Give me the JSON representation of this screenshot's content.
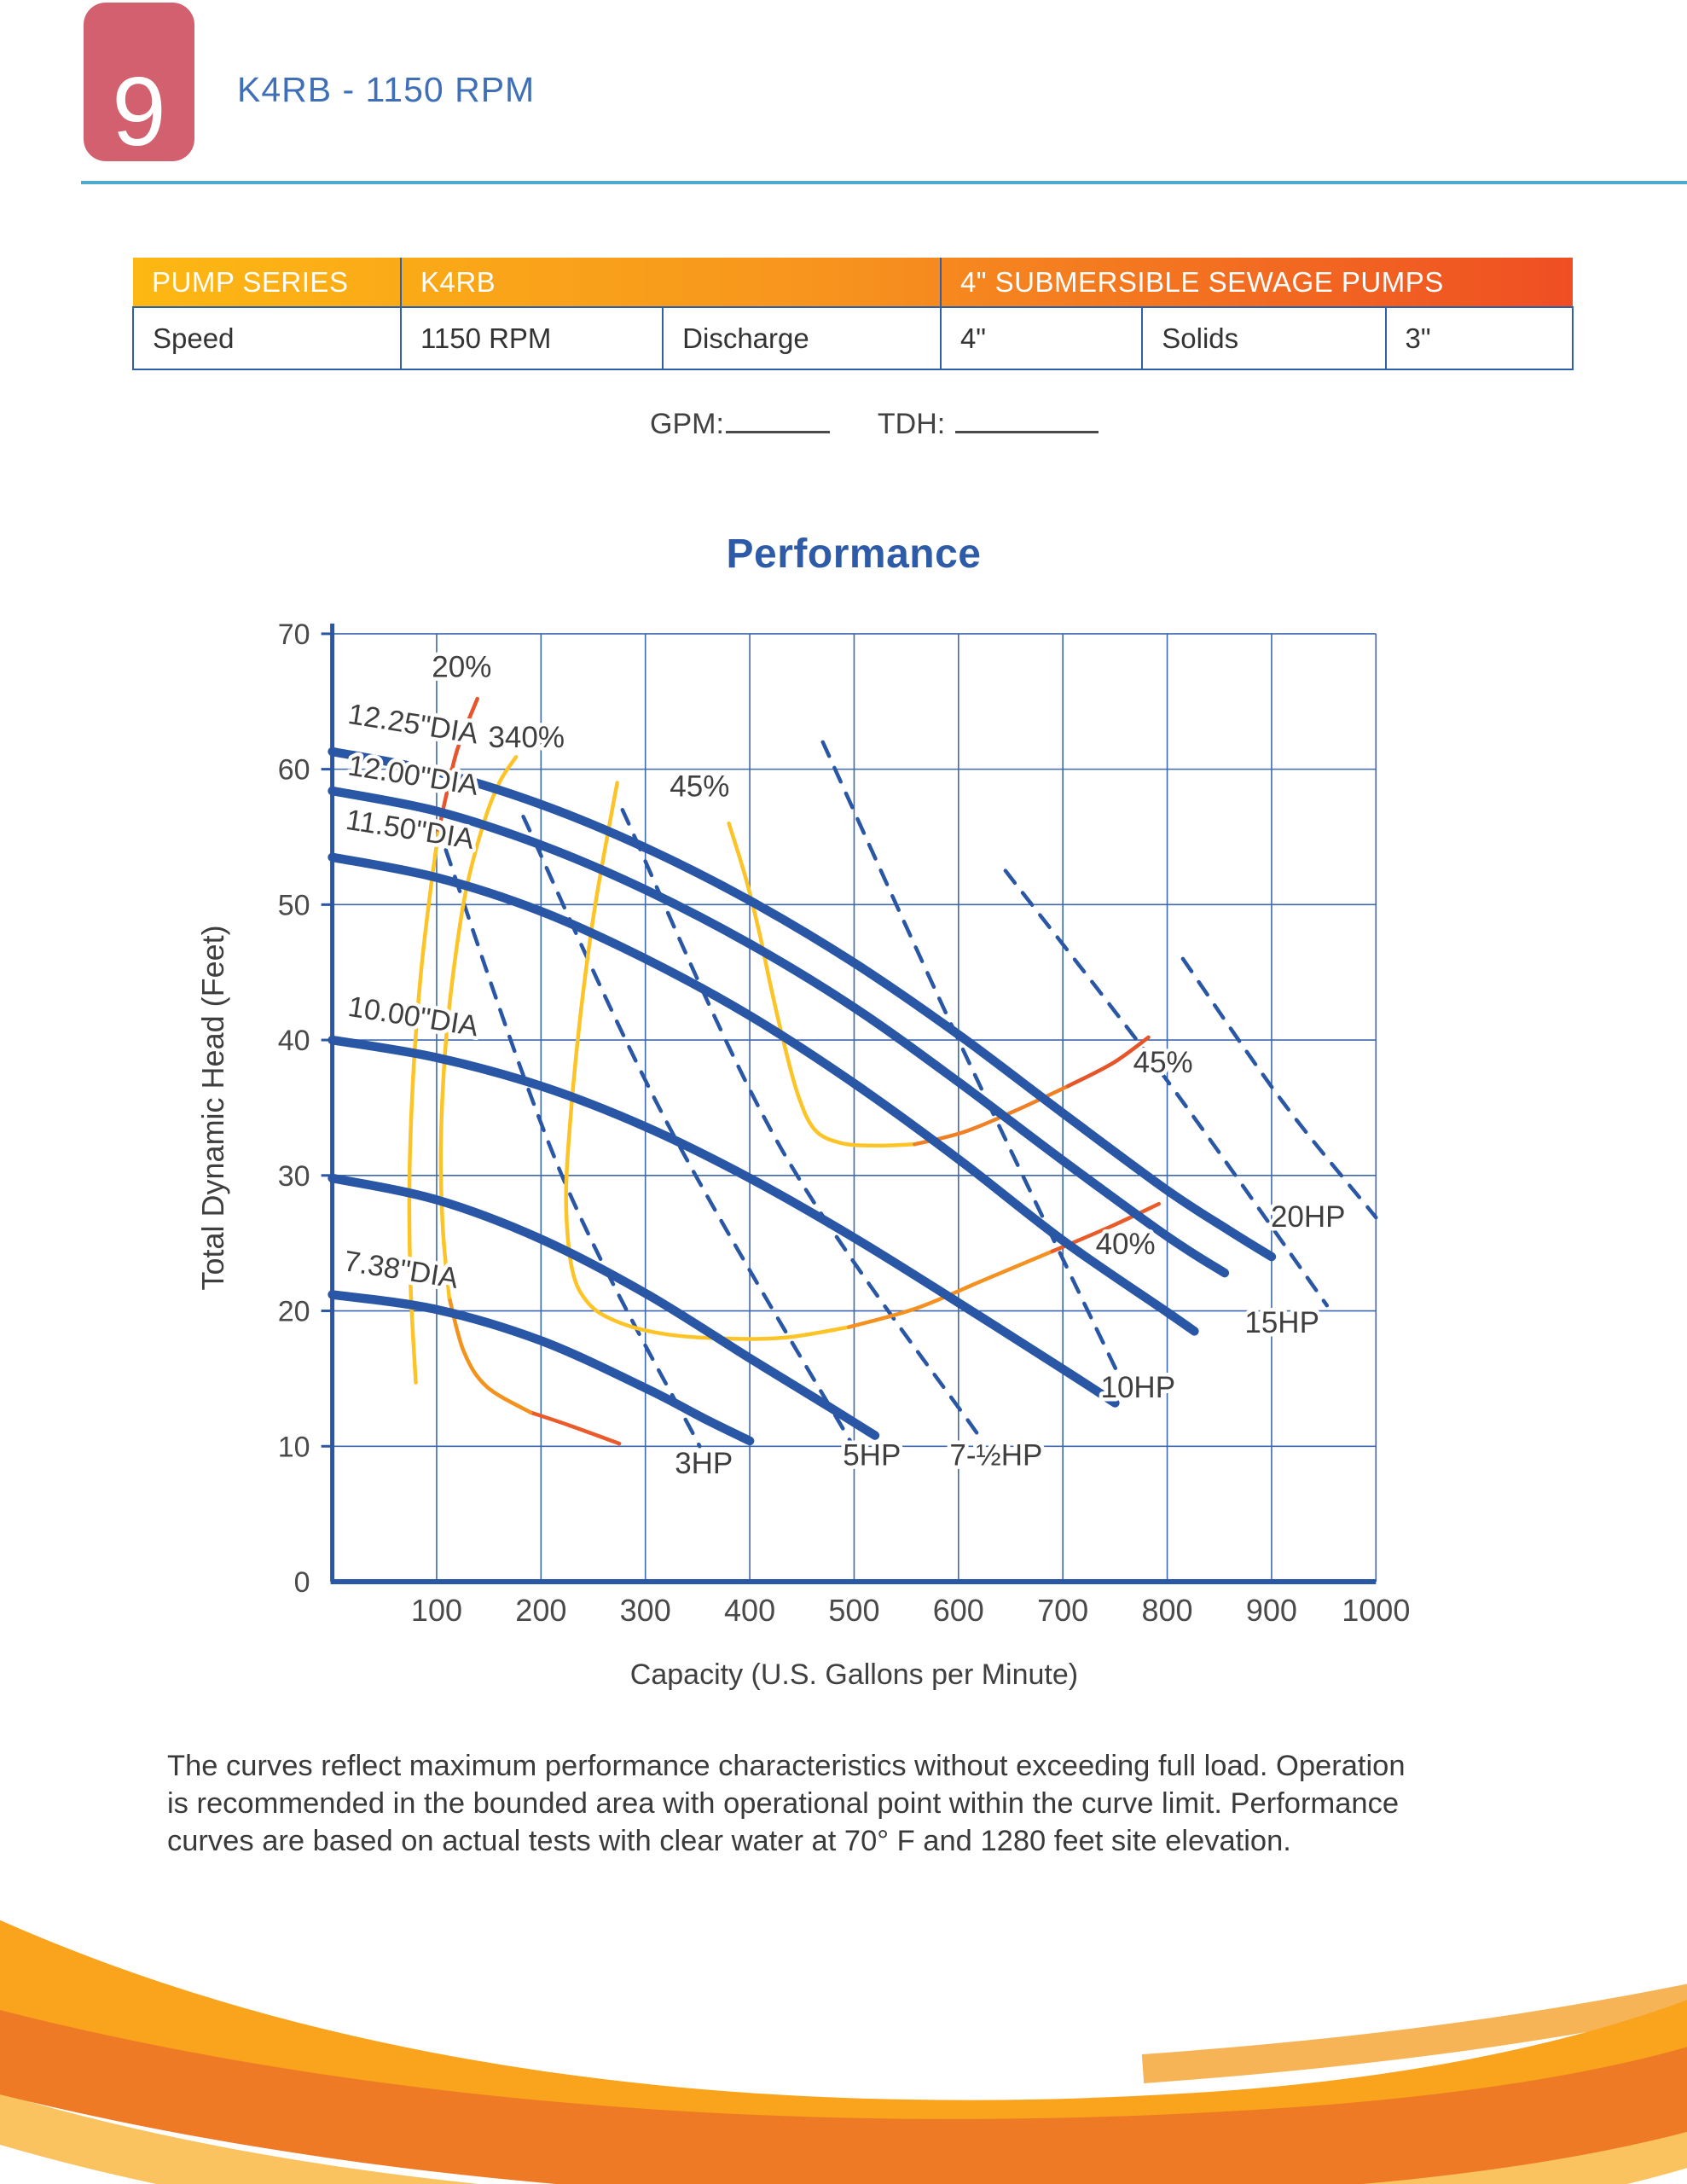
{
  "page": {
    "badge": "9",
    "title": "K4RB - 1150 RPM"
  },
  "spec_table": {
    "header": [
      "PUMP SERIES",
      "K4RB",
      "4\" SUBMERSIBLE SEWAGE PUMPS"
    ],
    "row": [
      "Speed",
      "1150 RPM",
      "Discharge",
      "4\"",
      "Solids",
      "3\""
    ]
  },
  "fill_in": {
    "gpm_label": "GPM:",
    "tdh_label": "TDH:"
  },
  "chart_data": {
    "type": "line",
    "title": "Performance",
    "xlabel": "Capacity (U.S. Gallons per Minute)",
    "ylabel": "Total Dynamic Head (Feet)",
    "xlim": [
      0,
      1000
    ],
    "ylim": [
      0,
      70
    ],
    "xticks": [
      100,
      200,
      300,
      400,
      500,
      600,
      700,
      800,
      900,
      1000
    ],
    "yticks": [
      0,
      10,
      20,
      30,
      40,
      50,
      60,
      70
    ],
    "grid": true,
    "series": [
      {
        "name": "12.25\"DIA",
        "points": [
          [
            0,
            61.3
          ],
          [
            100,
            59.8
          ],
          [
            200,
            57.4
          ],
          [
            300,
            54.2
          ],
          [
            400,
            50.3
          ],
          [
            500,
            45.7
          ],
          [
            600,
            40.4
          ],
          [
            700,
            34.6
          ],
          [
            800,
            28.9
          ],
          [
            860,
            25.9
          ],
          [
            900,
            24.0
          ]
        ],
        "label": {
          "text": "12.25\"DIA",
          "g": 14,
          "f": 63.4,
          "rot": 9
        }
      },
      {
        "name": "12.00\"DIA",
        "points": [
          [
            0,
            58.4
          ],
          [
            100,
            56.9
          ],
          [
            200,
            54.4
          ],
          [
            300,
            51.1
          ],
          [
            400,
            47.1
          ],
          [
            500,
            42.4
          ],
          [
            600,
            36.9
          ],
          [
            700,
            31.1
          ],
          [
            800,
            25.5
          ],
          [
            855,
            22.8
          ]
        ],
        "label": {
          "text": "12.00\"DIA",
          "g": 14,
          "f": 59.6,
          "rot": 9
        }
      },
      {
        "name": "11.50\"DIA",
        "points": [
          [
            0,
            53.5
          ],
          [
            100,
            52.0
          ],
          [
            200,
            49.5
          ],
          [
            300,
            46.0
          ],
          [
            400,
            41.8
          ],
          [
            500,
            36.8
          ],
          [
            600,
            31.2
          ],
          [
            700,
            25.2
          ],
          [
            800,
            19.9
          ],
          [
            826,
            18.5
          ]
        ],
        "label": {
          "text": "11.50\"DIA",
          "g": 12,
          "f": 55.6,
          "rot": 9
        }
      },
      {
        "name": "10.00\"DIA",
        "points": [
          [
            0,
            40.0
          ],
          [
            100,
            38.7
          ],
          [
            200,
            36.6
          ],
          [
            300,
            33.6
          ],
          [
            400,
            29.8
          ],
          [
            500,
            25.4
          ],
          [
            600,
            20.6
          ],
          [
            700,
            15.7
          ],
          [
            750,
            13.2
          ]
        ],
        "label": {
          "text": "10.00\"DIA",
          "g": 14,
          "f": 41.8,
          "rot": 9
        }
      },
      {
        "name": "",
        "points": [
          [
            0,
            29.8
          ],
          [
            100,
            28.2
          ],
          [
            200,
            25.3
          ],
          [
            300,
            21.3
          ],
          [
            400,
            16.5
          ],
          [
            470,
            13.2
          ],
          [
            520,
            10.8
          ]
        ],
        "label": null
      },
      {
        "name": "7.38\"DIA",
        "points": [
          [
            0,
            21.2
          ],
          [
            100,
            20.1
          ],
          [
            200,
            17.8
          ],
          [
            300,
            14.3
          ],
          [
            360,
            11.9
          ],
          [
            400,
            10.4
          ]
        ],
        "label": {
          "text": "7.38\"DIA",
          "g": 10,
          "f": 23.0,
          "rot": 9
        }
      }
    ],
    "hp_lines": [
      {
        "name": "3HP",
        "points": [
          [
            100,
            56
          ],
          [
            220,
            30
          ],
          [
            352,
            10
          ]
        ],
        "label": {
          "text": "3HP",
          "g": 356,
          "f": 8.0
        }
      },
      {
        "name": "5HP",
        "points": [
          [
            183,
            56.5
          ],
          [
            320,
            34
          ],
          [
            503,
            9.5
          ]
        ],
        "label": {
          "text": "5HP",
          "g": 517,
          "f": 8.6
        }
      },
      {
        "name": "7-½HP",
        "points": [
          [
            278,
            57
          ],
          [
            430,
            32
          ],
          [
            622,
            10.5
          ]
        ],
        "label": {
          "text": "7-½HP",
          "g": 636,
          "f": 8.6
        }
      },
      {
        "name": "10HP",
        "points": [
          [
            470,
            62
          ],
          [
            600,
            40
          ],
          [
            752,
            15.5
          ]
        ],
        "label": {
          "text": "10HP",
          "g": 772,
          "f": 13.6
        }
      },
      {
        "name": "15HP",
        "points": [
          [
            645,
            52.5
          ],
          [
            800,
            37
          ],
          [
            953,
            20.4
          ]
        ],
        "label": {
          "text": "15HP",
          "g": 910,
          "f": 18.4
        }
      },
      {
        "name": "20HP",
        "points": [
          [
            815,
            46
          ],
          [
            910,
            35.5
          ],
          [
            1000,
            26.9
          ]
        ],
        "label": {
          "text": "20HP",
          "g": 935,
          "f": 26.2
        }
      }
    ],
    "efficiency_curves": [
      {
        "name": "20%",
        "labels": [
          {
            "text": "20%",
            "g": 124,
            "f": 66.8
          }
        ],
        "segments": [
          {
            "color": "#FDC428",
            "points": [
              [
                80,
                14.7
              ],
              [
                75,
                22
              ],
              [
                74,
                30
              ],
              [
                78,
                38
              ],
              [
                85,
                45
              ],
              [
                94,
                51
              ],
              [
                102,
                55.5
              ]
            ]
          },
          {
            "color": "#E8542B",
            "points": [
              [
                102,
                55.5
              ],
              [
                109,
                58
              ],
              [
                120,
                61.5
              ],
              [
                139,
                65.2
              ]
            ]
          }
        ]
      },
      {
        "name": "340%",
        "labels": [
          {
            "text": "340%",
            "g": 186,
            "f": 61.6
          }
        ],
        "segments": [
          {
            "color": "#EA5A2B",
            "points": [
              [
                275,
                10.2
              ],
              [
                225,
                11.6
              ],
              [
                190,
                12.5
              ]
            ]
          },
          {
            "color": "#F4921E",
            "points": [
              [
                190,
                12.5
              ],
              [
                148,
                14.4
              ],
              [
                126,
                17
              ],
              [
                112,
                21
              ]
            ]
          },
          {
            "color": "#FDC428",
            "points": [
              [
                112,
                21
              ],
              [
                106,
                26
              ],
              [
                104,
                32
              ],
              [
                108,
                39
              ],
              [
                116,
                45
              ],
              [
                128,
                51
              ],
              [
                145,
                56
              ],
              [
                160,
                59
              ],
              [
                176,
                60.9
              ]
            ]
          }
        ]
      },
      {
        "name": "45%",
        "labels": [
          {
            "text": "45%",
            "g": 352,
            "f": 58.0
          },
          {
            "text": "45%",
            "g": 796,
            "f": 37.6
          }
        ],
        "segments": [
          {
            "color": "#FDC428",
            "points": [
              [
                380,
                56
              ],
              [
                396,
                52
              ],
              [
                409,
                48
              ],
              [
                420,
                44
              ],
              [
                432,
                40
              ],
              [
                446,
                36
              ],
              [
                462,
                33.4
              ],
              [
                487,
                32.4
              ],
              [
                520,
                32.2
              ],
              [
                558,
                32.3
              ]
            ]
          },
          {
            "color": "#F08026",
            "points": [
              [
                558,
                32.3
              ],
              [
                605,
                33.2
              ],
              [
                655,
                34.8
              ],
              [
                705,
                36.6
              ]
            ]
          },
          {
            "color": "#E65429",
            "points": [
              [
                705,
                36.6
              ],
              [
                748,
                38.3
              ],
              [
                782,
                40.2
              ]
            ]
          }
        ]
      },
      {
        "name": "40%",
        "labels": [
          {
            "text": "40%",
            "g": 760,
            "f": 24.2
          }
        ],
        "segments": [
          {
            "color": "#FDC428",
            "points": [
              [
                273,
                59
              ],
              [
                252,
                50
              ],
              [
                238,
                42
              ],
              [
                228,
                34
              ],
              [
                224,
                28
              ],
              [
                230,
                23
              ],
              [
                245,
                20.6
              ],
              [
                270,
                19.3
              ],
              [
                310,
                18.4
              ],
              [
                360,
                18.0
              ],
              [
                430,
                18.0
              ],
              [
                495,
                18.8
              ]
            ]
          },
          {
            "color": "#F59120",
            "points": [
              [
                495,
                18.8
              ],
              [
                560,
                20.2
              ],
              [
                625,
                22.3
              ],
              [
                690,
                24.4
              ]
            ]
          },
          {
            "color": "#E95C29",
            "points": [
              [
                690,
                24.4
              ],
              [
                745,
                26.2
              ],
              [
                792,
                27.9
              ]
            ]
          }
        ]
      }
    ]
  },
  "footer": {
    "lines": [
      "The curves reflect maximum performance characteristics without exceeding full load. Operation",
      "is recommended in the bounded area with operational point within the curve limit. Performance",
      "curves are based on actual tests with clear water at 70° F and 1280 feet site elevation."
    ]
  },
  "colors": {
    "badge_bg": "#D2606E",
    "title_blue": "#3F6FB7",
    "divider": "#4FAAD0",
    "perf_blue": "#2E5BA8",
    "table_border": "#2F5FA8",
    "text_dark": "#3A3A3A",
    "chart_blue": "#2A57A5",
    "grid_blue": "#3E68B0",
    "label_gray": "#3F3F3F",
    "header_gradient": [
      "#FDB813",
      "#F7941E",
      "#EF4E23"
    ],
    "swoosh": [
      "#F6B457",
      "#F9A41C",
      "#FAC35F",
      "#EE7A26"
    ]
  }
}
